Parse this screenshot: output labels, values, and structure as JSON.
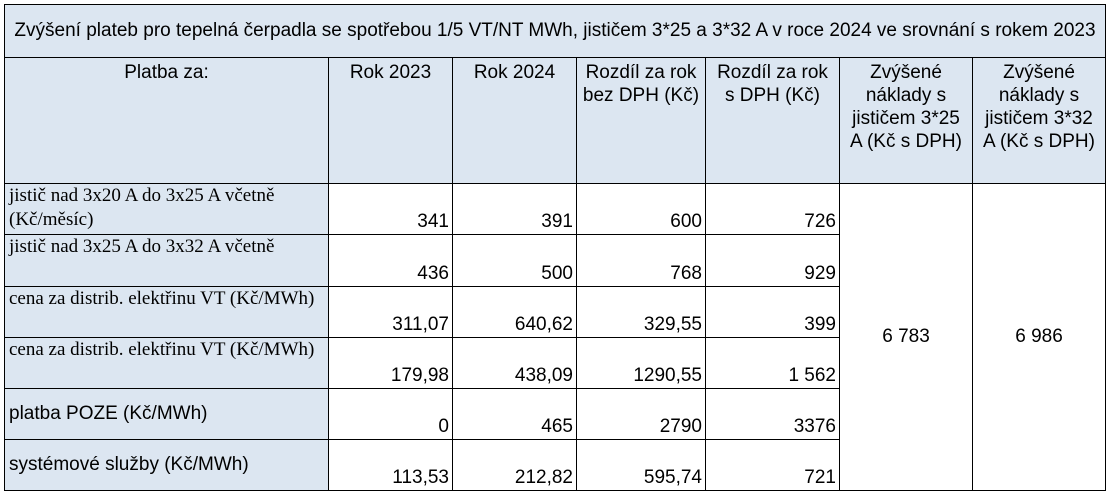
{
  "title": "Zvýšení plateb pro tepelná čerpadla se spotřebou 1/5 VT/NT  MWh, jističem 3*25 a 3*32 A v roce 2024 ve srovnání s rokem 2023",
  "headers": {
    "platba": "Platba za:",
    "rok2023": "Rok 2023",
    "rok2024": "Rok 2024",
    "rozdil_bez": "Rozdíl za rok bez DPH (Kč)",
    "rozdil_s": "Rozdíl za rok s DPH (Kč)",
    "zvysene25": "Zvýšené náklady s jističem 3*25 A (Kč s DPH)",
    "zvysene32": "Zvýšené náklady s jističem 3*32 A (Kč s DPH)"
  },
  "rows": [
    {
      "label": "jistič nad 3x20 A do 3x25 A včetně (Kč/měsíc)",
      "r2023": "341",
      "r2024": "391",
      "bez": "600",
      "s": "726"
    },
    {
      "label": "jistič nad 3x25 A do 3x32 A včetně",
      "r2023": "436",
      "r2024": "500",
      "bez": "768",
      "s": "929"
    },
    {
      "label": "cena za distrib. elektřinu VT (Kč/MWh)",
      "r2023": "311,07",
      "r2024": "640,62",
      "bez": "329,55",
      "s": "399"
    },
    {
      "label": "cena za distrib. elektřinu VT (Kč/MWh)",
      "r2023": "179,98",
      "r2024": "438,09",
      "bez": "1290,55",
      "s": "1 562"
    },
    {
      "label": "platba POZE (Kč/MWh)",
      "r2023": "0",
      "r2024": "465",
      "bez": "2790",
      "s": "3376"
    },
    {
      "label": "systémové služby (Kč/MWh)",
      "r2023": "113,53",
      "r2024": "212,82",
      "bez": "595,74",
      "s": "721"
    }
  ],
  "totals": {
    "j25": "6 783",
    "j32": "6 986"
  }
}
